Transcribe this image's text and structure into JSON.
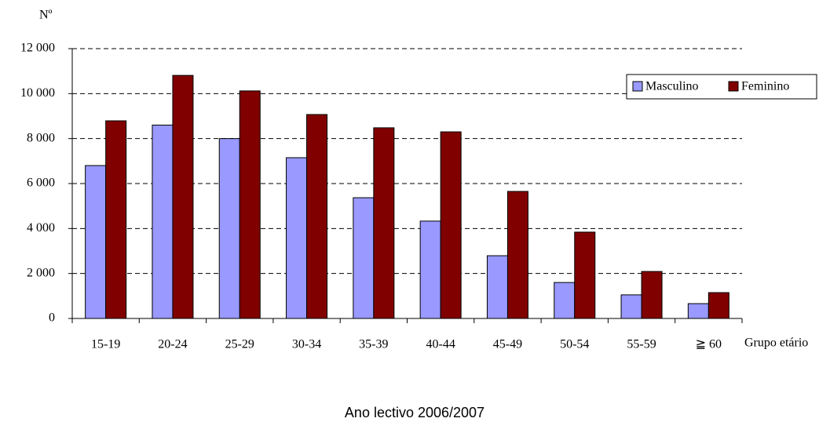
{
  "chart_data": {
    "type": "bar",
    "y_label": "Nº",
    "x_label": "Grupo etário",
    "caption": "Ano lectivo 2006/2007",
    "categories": [
      "15-19",
      "20-24",
      "25-29",
      "30-34",
      "35-39",
      "40-44",
      "45-49",
      "50-54",
      "55-59",
      "≧ 60"
    ],
    "series": [
      {
        "name": "Masculino",
        "color": "#9999ff",
        "values": [
          6800,
          8600,
          8000,
          7150,
          5370,
          4330,
          2790,
          1600,
          1050,
          660
        ]
      },
      {
        "name": "Feminino",
        "color": "#800000",
        "values": [
          8790,
          10810,
          10120,
          9070,
          8480,
          8300,
          5650,
          3840,
          2090,
          1150
        ]
      }
    ],
    "ylim": [
      0,
      12000
    ],
    "yticks": [
      0,
      {
        "value": 2000,
        "label": "2 000"
      },
      {
        "value": 4000,
        "label": "4 000"
      },
      {
        "value": 6000,
        "label": "6 000"
      },
      {
        "value": 8000,
        "label": "8 000"
      },
      {
        "value": 10000,
        "label": "10 000"
      },
      {
        "value": 12000,
        "label": "12 000"
      }
    ],
    "grid": true,
    "legend": "upper right"
  }
}
